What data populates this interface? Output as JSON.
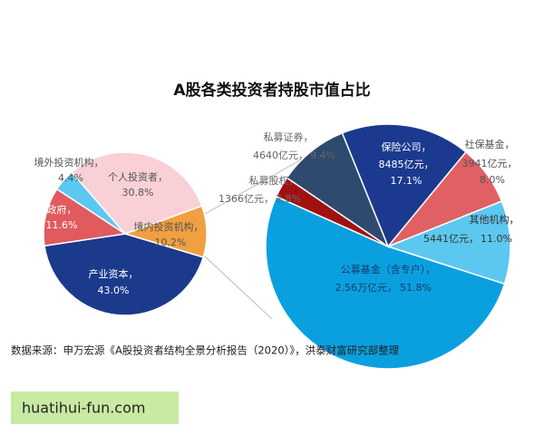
{
  "title": "A股各类投资者持股市值占比",
  "source": "数据来源：申万宏源《A股投资者结构全景分析报告（2020）》，洪泰财富研究部整理",
  "watermark": "huatihui-fun.com",
  "chart_data": [
    {
      "type": "pie",
      "categories": [
        "境内投资机构，",
        "产业资本，",
        "政府，",
        "境外投资机构，",
        "个人投资者，"
      ],
      "values": [
        10.2,
        43.0,
        11.6,
        4.4,
        30.8
      ],
      "value_labels": [
        "10.2%",
        "43.0%",
        "11.6%",
        "4.4%",
        "30.8%"
      ],
      "colors": [
        "#f0a040",
        "#1b3a8c",
        "#e05a5e",
        "#5cc8f0",
        "#f8d0d6"
      ]
    },
    {
      "type": "pie",
      "categories": [
        "保险公司，",
        "社保基金，",
        "其他机构，",
        "公募基金（含专户），",
        "私募股权，",
        "私募证券，"
      ],
      "values": [
        17.1,
        8.0,
        11.0,
        51.8,
        2.8,
        9.4
      ],
      "amounts": [
        "8485亿元，",
        "3941亿元，",
        "5441亿元，",
        "2.56万亿元，",
        "1366亿元，",
        "4640亿元，"
      ],
      "value_labels": [
        "17.1%",
        "8.0%",
        "11.0%",
        "51.8%",
        "2.8%",
        "9.4%"
      ],
      "colors": [
        "#1b3a8f",
        "#e06064",
        "#5cc8f0",
        "#0aa0e0",
        "#a01212",
        "#2e4a6e"
      ]
    }
  ]
}
